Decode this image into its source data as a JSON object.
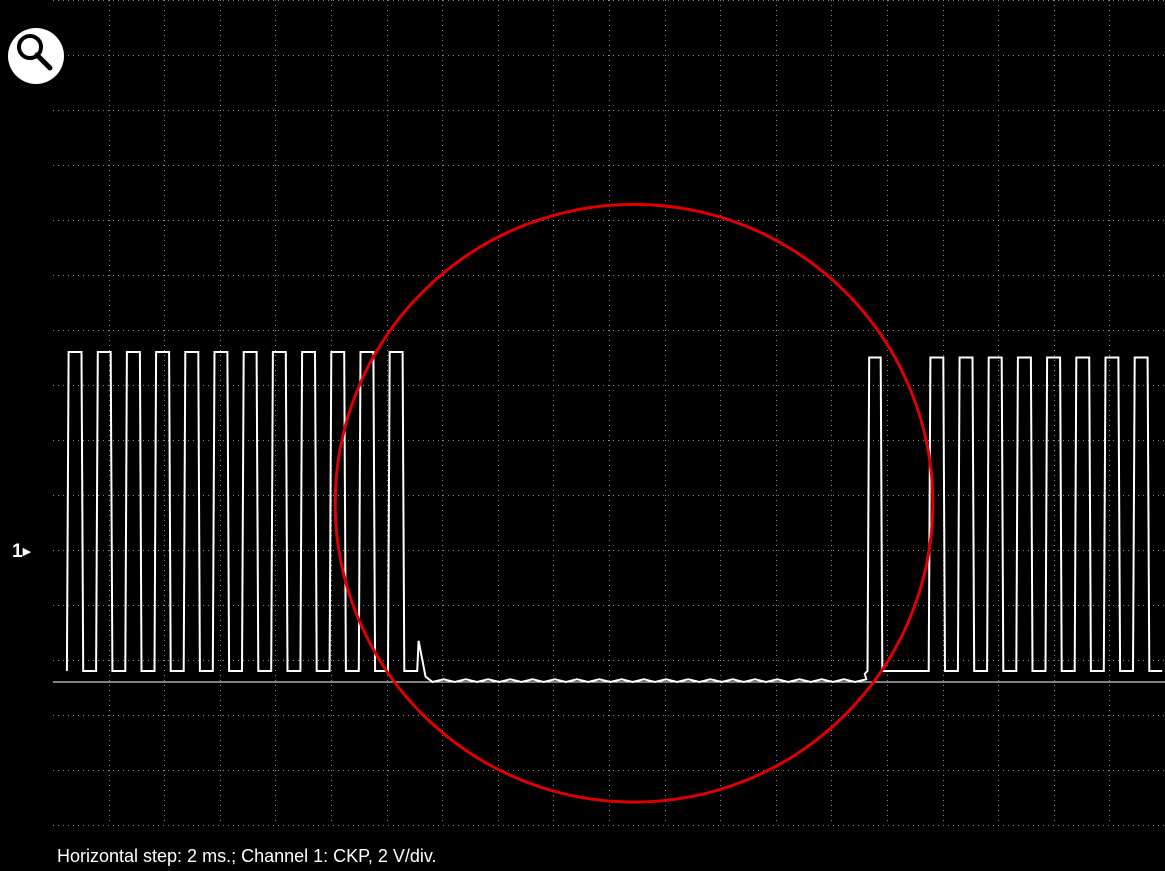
{
  "toolbar": {
    "zoom_icon": "magnifier-icon"
  },
  "channel": {
    "marker_label": "1",
    "marker_icon": "triangle-right-icon"
  },
  "caption": "Horizontal step: 2 ms.; Channel 1: CKP, 2 V/div.",
  "colors": {
    "background": "#000000",
    "grid": "#8a8a8a",
    "trace": "#ffffff",
    "annotation": "#e00000"
  },
  "chart_data": {
    "type": "line",
    "title": "",
    "xlabel": "",
    "ylabel": "",
    "grid": true,
    "x_divisions": 20,
    "y_divisions": 15,
    "x_units": "ms",
    "x_step_ms": 2,
    "y_units": "V",
    "volts_per_div": 2,
    "xlim": [
      0,
      40
    ],
    "ylim": [
      -5.2,
      24.8
    ],
    "series": [
      {
        "name": "CKP",
        "segments": [
          {
            "kind": "pulses",
            "start_ms": 0.5,
            "period_ms": 1.05,
            "count": 12,
            "high_v": 12.0,
            "low_v": 0.4,
            "duty": 0.5
          },
          {
            "kind": "gap",
            "start_ms": 13.15,
            "end_ms": 29.3,
            "level_v": 0.0,
            "ripple_v": 0.1
          },
          {
            "kind": "pulses",
            "start_ms": 29.3,
            "period_ms": 1.05,
            "count": 1,
            "high_v": 11.8,
            "low_v": 0.4,
            "duty": 0.45
          },
          {
            "kind": "pulses",
            "start_ms": 31.5,
            "period_ms": 1.05,
            "count": 8,
            "high_v": 11.8,
            "low_v": 0.4,
            "duty": 0.5
          }
        ]
      }
    ],
    "annotations": [
      {
        "type": "circle",
        "center_ms": 20.9,
        "center_v": 6.5,
        "radius_ms": 10.75
      }
    ]
  }
}
